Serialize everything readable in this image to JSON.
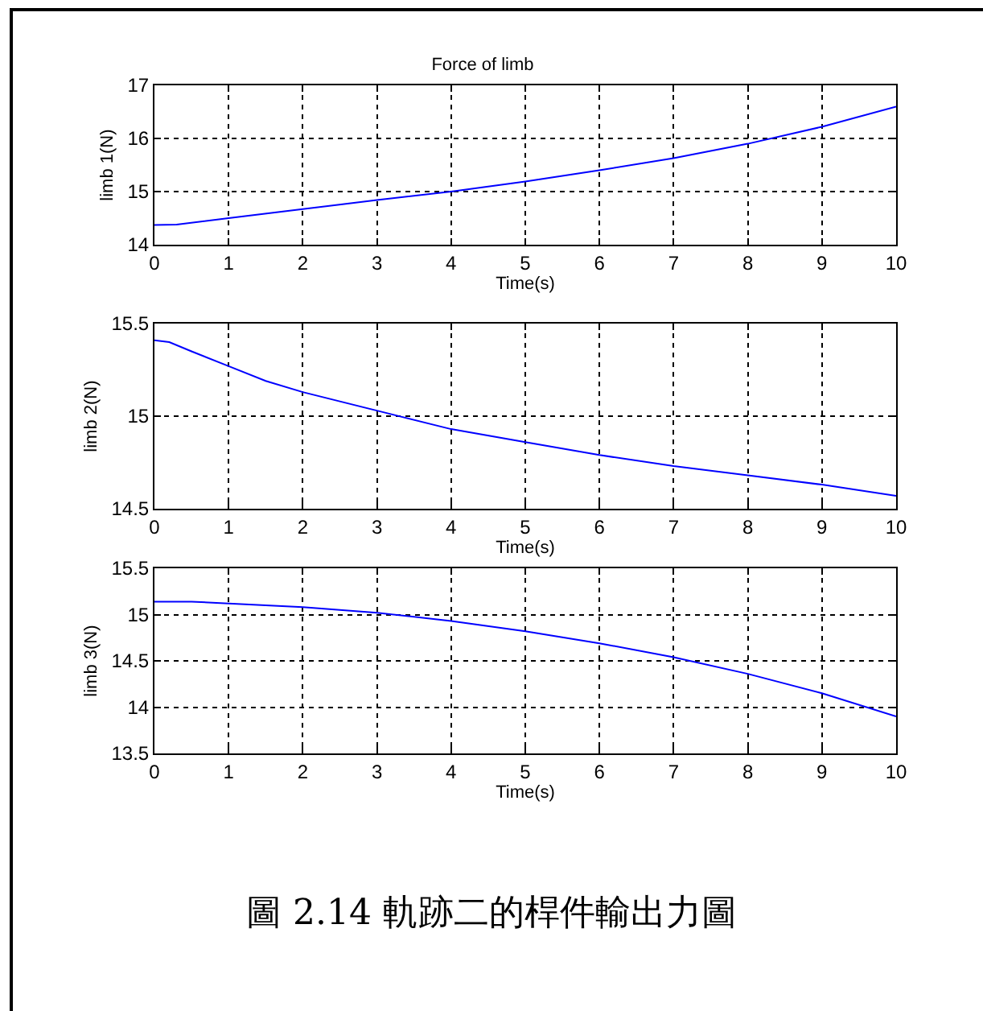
{
  "chart_data": [
    {
      "type": "line",
      "title": "Force of limb",
      "xlabel": "Time(s)",
      "ylabel": "limb 1(N)",
      "xlim": [
        0,
        10
      ],
      "xticks": [
        0,
        1,
        2,
        3,
        4,
        5,
        6,
        7,
        8,
        9,
        10
      ],
      "ylim": [
        14,
        17
      ],
      "yticks": [
        14,
        15,
        16,
        17
      ],
      "grid": true,
      "line_style": "solid",
      "x": [
        0,
        0.3,
        1,
        2,
        3,
        4,
        5,
        6,
        7,
        8,
        9,
        10
      ],
      "series": [
        {
          "color": "#0000ff",
          "values": [
            14.37,
            14.38,
            14.5,
            14.67,
            14.84,
            15.0,
            15.19,
            15.4,
            15.63,
            15.9,
            16.22,
            16.6
          ]
        }
      ]
    },
    {
      "type": "line",
      "xlabel": "Time(s)",
      "ylabel": "limb 2(N)",
      "xlim": [
        0,
        10
      ],
      "xticks": [
        0,
        1,
        2,
        3,
        4,
        5,
        6,
        7,
        8,
        9,
        10
      ],
      "ylim": [
        14.5,
        15.5
      ],
      "yticks": [
        14.5,
        15,
        15.5
      ],
      "grid": true,
      "line_style": "solid",
      "x": [
        0,
        0.2,
        0.5,
        1,
        1.5,
        2,
        3,
        4,
        5,
        6,
        7,
        8,
        9,
        10
      ],
      "series": [
        {
          "color": "#0000ff",
          "values": [
            15.41,
            15.4,
            15.35,
            15.27,
            15.19,
            15.13,
            15.03,
            14.93,
            14.86,
            14.79,
            14.73,
            14.68,
            14.63,
            14.57
          ]
        }
      ]
    },
    {
      "type": "line",
      "xlabel": "Time(s)",
      "ylabel": "limb 3(N)",
      "xlim": [
        0,
        10
      ],
      "xticks": [
        0,
        1,
        2,
        3,
        4,
        5,
        6,
        7,
        8,
        9,
        10
      ],
      "ylim": [
        13.5,
        15.5
      ],
      "yticks": [
        13.5,
        14,
        14.5,
        15,
        15.5
      ],
      "grid": true,
      "line_style": "solid",
      "x": [
        0,
        0.5,
        1,
        2,
        3,
        4,
        5,
        6,
        7,
        8,
        9,
        10
      ],
      "series": [
        {
          "color": "#0000ff",
          "values": [
            15.14,
            15.14,
            15.12,
            15.08,
            15.02,
            14.93,
            14.82,
            14.69,
            14.54,
            14.36,
            14.15,
            13.9
          ]
        }
      ],
      "annotations": [
        "圖 2.14 軌跡二的桿件輸出力圖"
      ]
    }
  ]
}
